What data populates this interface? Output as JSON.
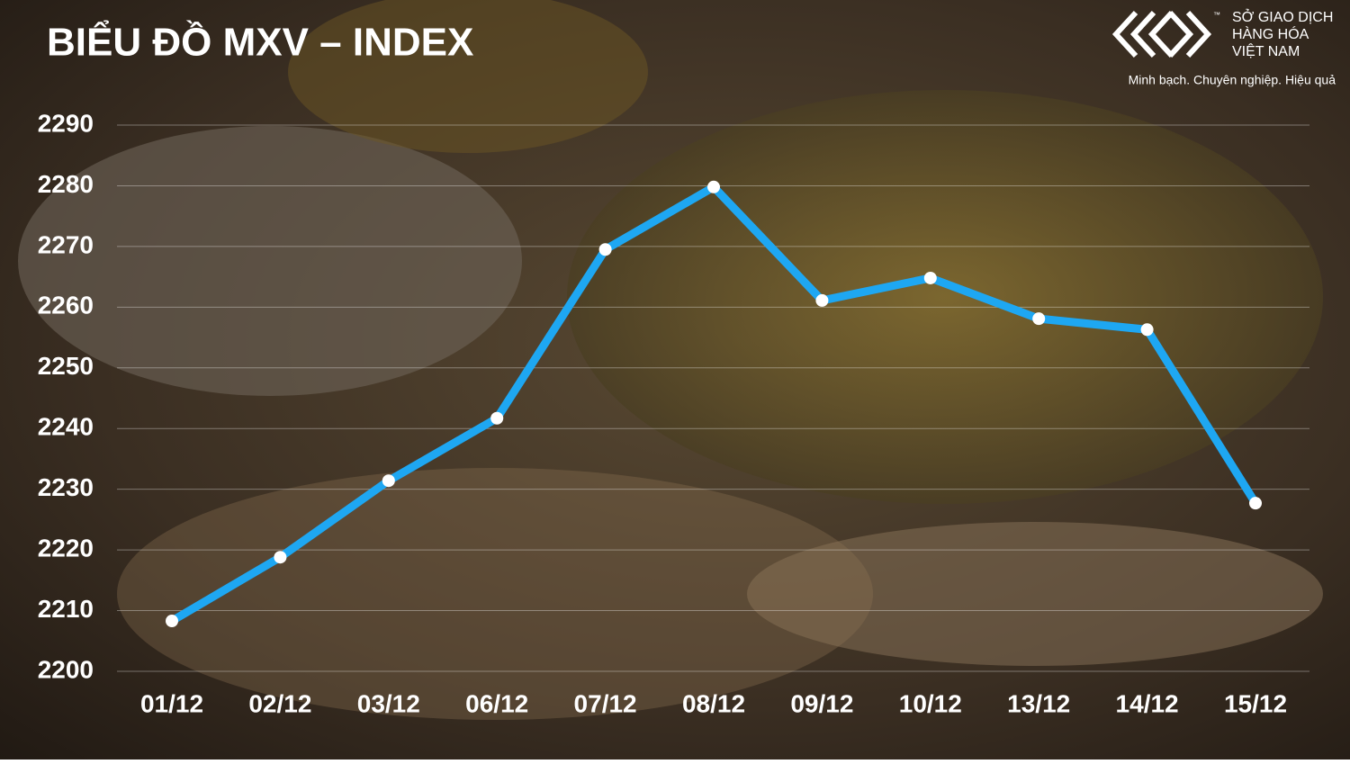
{
  "chart_data": {
    "type": "line",
    "title": "BIỂU ĐỒ MXV – INDEX",
    "categories": [
      "01/12",
      "02/12",
      "03/12",
      "06/12",
      "07/12",
      "08/12",
      "09/12",
      "10/12",
      "13/12",
      "14/12",
      "15/12"
    ],
    "values": [
      2208.3,
      2218.8,
      2231.4,
      2241.7,
      2269.5,
      2279.8,
      2261.1,
      2264.8,
      2258.1,
      2256.3,
      2227.7
    ],
    "color": "#1ea7f2",
    "marker_color": "#ffffff",
    "ylim": [
      2200,
      2290
    ],
    "yticks": [
      2200,
      2210,
      2220,
      2230,
      2240,
      2250,
      2260,
      2270,
      2280,
      2290
    ],
    "grid": true
  },
  "logo": {
    "trademark": "™",
    "lines": [
      "SỞ GIAO DỊCH",
      "HÀNG HÓA",
      "VIỆT NAM"
    ],
    "tagline": "Minh bạch. Chuyên nghiệp. Hiệu quả"
  }
}
